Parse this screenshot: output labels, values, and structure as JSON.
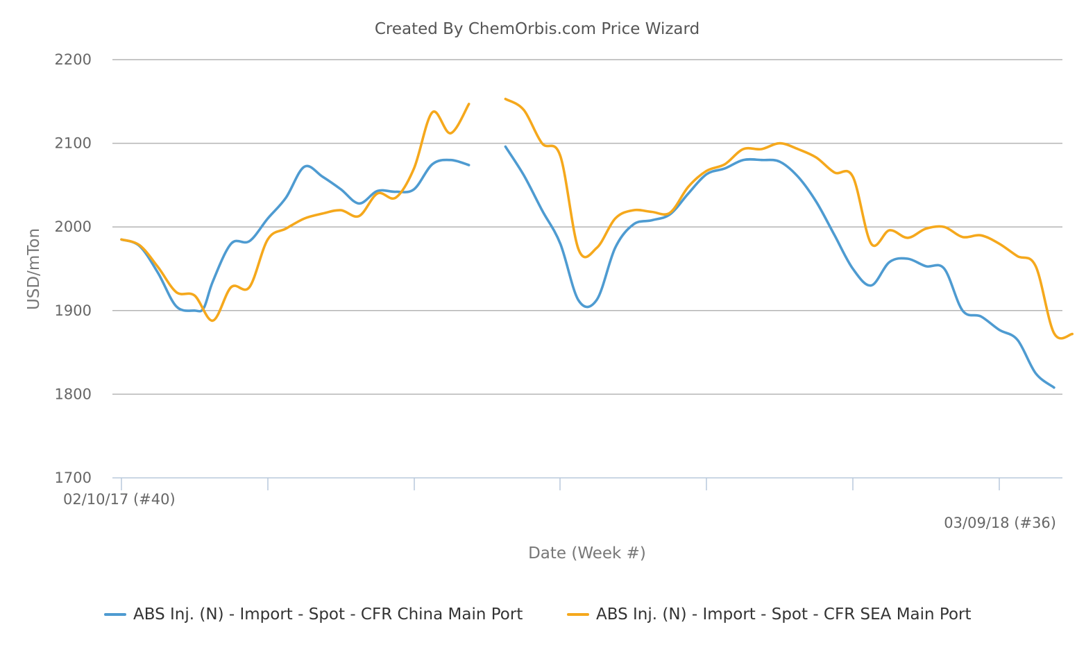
{
  "chart_data": {
    "type": "line",
    "title": "Created By ChemOrbis.com Price Wizard",
    "xlabel": "Date (Week #)",
    "ylabel": "USD/mTon",
    "ylim": [
      1700,
      2200
    ],
    "yticks": [
      1700,
      1800,
      1900,
      2000,
      2100,
      2200
    ],
    "xlim": [
      0,
      51
    ],
    "x_start_label": "02/10/17 (#40)",
    "x_end_label": "03/09/18 (#36)",
    "grid": true,
    "legend_position": "bottom",
    "series": [
      {
        "name": "ABS Inj. (N) - Import - Spot - CFR China Main Port",
        "color": "#4e9bd1",
        "points": [
          [
            0,
            1985
          ],
          [
            1,
            1977
          ],
          [
            2,
            1945
          ],
          [
            3,
            1905
          ],
          [
            4,
            1900
          ],
          [
            4.5,
            1903
          ],
          [
            5,
            1935
          ],
          [
            6,
            1980
          ],
          [
            7,
            1983
          ],
          [
            8,
            2010
          ],
          [
            9,
            2035
          ],
          [
            10,
            2072
          ],
          [
            11,
            2060
          ],
          [
            12,
            2045
          ],
          [
            13,
            2028
          ],
          [
            14,
            2043
          ],
          [
            15,
            2042
          ],
          [
            16,
            2045
          ],
          [
            17,
            2075
          ],
          [
            18,
            2080
          ],
          [
            19,
            2074
          ],
          null,
          [
            21,
            2096
          ],
          [
            22,
            2062
          ],
          [
            23,
            2020
          ],
          [
            24,
            1980
          ],
          [
            25,
            1912
          ],
          [
            26,
            1913
          ],
          [
            27,
            1975
          ],
          [
            28,
            2003
          ],
          [
            29,
            2008
          ],
          [
            30,
            2015
          ],
          [
            31,
            2040
          ],
          [
            32,
            2063
          ],
          [
            33,
            2070
          ],
          [
            34,
            2080
          ],
          [
            35,
            2080
          ],
          [
            36,
            2078
          ],
          [
            37,
            2060
          ],
          [
            38,
            2030
          ],
          [
            39,
            1990
          ],
          [
            40,
            1950
          ],
          [
            41,
            1930
          ],
          [
            42,
            1958
          ],
          [
            43,
            1962
          ],
          [
            44,
            1953
          ],
          [
            45,
            1950
          ],
          [
            46,
            1900
          ],
          [
            47,
            1893
          ],
          [
            48,
            1877
          ],
          [
            49,
            1865
          ],
          [
            50,
            1825
          ],
          [
            51,
            1808
          ]
        ]
      },
      {
        "name": "ABS Inj. (N) - Import - Spot - CFR SEA Main Port",
        "color": "#f5a81c",
        "points": [
          [
            0,
            1985
          ],
          [
            1,
            1978
          ],
          [
            2,
            1952
          ],
          [
            3,
            1922
          ],
          [
            4,
            1918
          ],
          [
            5,
            1888
          ],
          [
            6,
            1928
          ],
          [
            7,
            1928
          ],
          [
            8,
            1985
          ],
          [
            9,
            1998
          ],
          [
            10,
            2010
          ],
          [
            11,
            2016
          ],
          [
            12,
            2020
          ],
          [
            13,
            2013
          ],
          [
            14,
            2040
          ],
          [
            15,
            2035
          ],
          [
            16,
            2070
          ],
          [
            17,
            2137
          ],
          [
            18,
            2112
          ],
          [
            19,
            2147
          ],
          null,
          [
            21,
            2153
          ],
          [
            22,
            2140
          ],
          [
            23,
            2100
          ],
          [
            24,
            2085
          ],
          [
            25,
            1973
          ],
          [
            26,
            1975
          ],
          [
            27,
            2010
          ],
          [
            28,
            2020
          ],
          [
            29,
            2018
          ],
          [
            30,
            2017
          ],
          [
            31,
            2048
          ],
          [
            32,
            2067
          ],
          [
            33,
            2075
          ],
          [
            34,
            2093
          ],
          [
            35,
            2093
          ],
          [
            36,
            2100
          ],
          [
            37,
            2093
          ],
          [
            38,
            2083
          ],
          [
            39,
            2065
          ],
          [
            40,
            2060
          ],
          [
            41,
            1980
          ],
          [
            42,
            1996
          ],
          [
            43,
            1987
          ],
          [
            44,
            1998
          ],
          [
            45,
            2000
          ],
          [
            46,
            1988
          ],
          [
            47,
            1990
          ],
          [
            48,
            1980
          ],
          [
            49,
            1965
          ],
          [
            50,
            1953
          ],
          [
            51,
            1873
          ],
          [
            52,
            1872
          ]
        ]
      }
    ]
  }
}
